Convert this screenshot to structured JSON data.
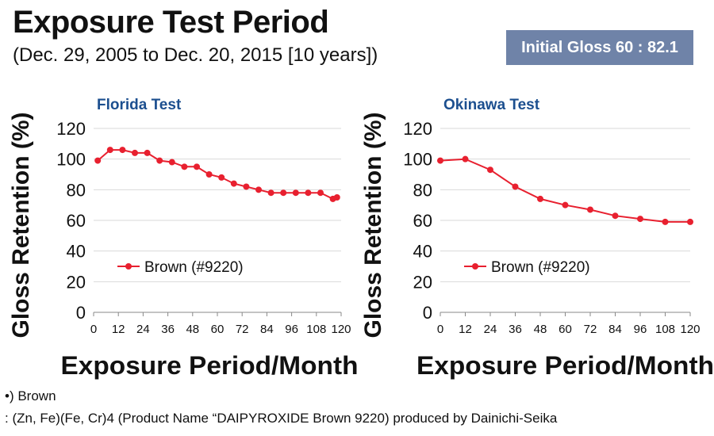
{
  "header": {
    "title": "Exposure Test Period",
    "subtitle": "(Dec. 29, 2005 to Dec. 20, 2015 [10 years])",
    "badge": "Initial Gloss 60 : 82.1"
  },
  "colors": {
    "series": "#e8202f",
    "panel_title": "#1c4f8f",
    "badge_bg": "#6f83a8",
    "grid": "#d9d9d9"
  },
  "chart_data": [
    {
      "type": "line",
      "panel_title": "Florida Test",
      "xlabel": "Exposure Period/Month",
      "ylabel": "Gloss Retention (%)",
      "xlim": [
        0,
        120
      ],
      "ylim": [
        0,
        120
      ],
      "xticks": [
        0,
        12,
        24,
        36,
        48,
        60,
        72,
        84,
        96,
        108,
        120
      ],
      "yticks": [
        0,
        20,
        40,
        60,
        80,
        100,
        120
      ],
      "grid": "horizontal",
      "legend": "inside-lower-left",
      "series": [
        {
          "name": "Brown (#9220)",
          "x": [
            2,
            8,
            14,
            20,
            26,
            32,
            38,
            44,
            50,
            56,
            62,
            68,
            74,
            80,
            86,
            92,
            98,
            104,
            110,
            116,
            118
          ],
          "y": [
            99,
            106,
            106,
            104,
            104,
            99,
            98,
            95,
            95,
            90,
            88,
            84,
            82,
            80,
            78,
            78,
            78,
            78,
            78,
            74,
            75
          ]
        }
      ]
    },
    {
      "type": "line",
      "panel_title": "Okinawa Test",
      "xlabel": "Exposure Period/Month",
      "ylabel": "Gloss Retention (%)",
      "xlim": [
        0,
        120
      ],
      "ylim": [
        0,
        120
      ],
      "xticks": [
        0,
        12,
        24,
        36,
        48,
        60,
        72,
        84,
        96,
        108,
        120
      ],
      "yticks": [
        0,
        20,
        40,
        60,
        80,
        100,
        120
      ],
      "grid": "horizontal",
      "legend": "inside-lower-left",
      "series": [
        {
          "name": "Brown (#9220)",
          "x": [
            0,
            12,
            24,
            36,
            48,
            60,
            72,
            84,
            96,
            108,
            120
          ],
          "y": [
            99,
            100,
            93,
            82,
            74,
            70,
            67,
            63,
            61,
            59,
            59
          ]
        }
      ]
    }
  ],
  "footnotes": [
    "•) Brown",
    ": (Zn, Fe)(Fe, Cr)4 (Product Name “DAIPYROXIDE Brown 9220) produced by Dainichi-Seika"
  ]
}
